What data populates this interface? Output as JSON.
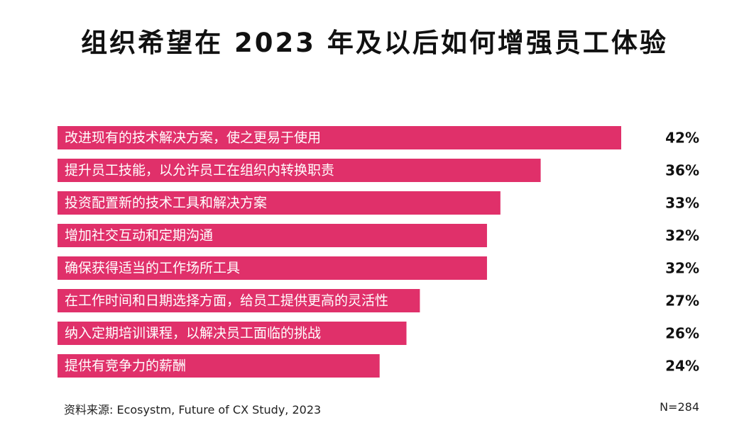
{
  "chart_data": {
    "type": "bar",
    "orientation": "horizontal",
    "title": "组织希望在 2023 年及以后如何增强员工体验",
    "categories": [
      "改进现有的技术解决方案，使之更易于使用",
      "提升员工技能，以允许员工在组织内转换职责",
      "投资配置新的技术工具和解决方案",
      "增加社交互动和定期沟通",
      "确保获得适当的工作场所工具",
      "在工作时间和日期选择方面，给员工提供更高的灵活性",
      "纳入定期培训课程，以解决员工面临的挑战",
      "提供有竞争力的薪酬"
    ],
    "values": [
      42,
      36,
      33,
      32,
      32,
      27,
      26,
      24
    ],
    "value_labels": [
      "42%",
      "36%",
      "33%",
      "32%",
      "32%",
      "27%",
      "26%",
      "24%"
    ],
    "unit": "%",
    "xlabel": "",
    "ylabel": "",
    "bar_color": "#e0306a",
    "grid": false
  },
  "footer": {
    "source": "资料来源: Ecosystm, Future of CX Study, 2023",
    "sample": "N=284"
  }
}
